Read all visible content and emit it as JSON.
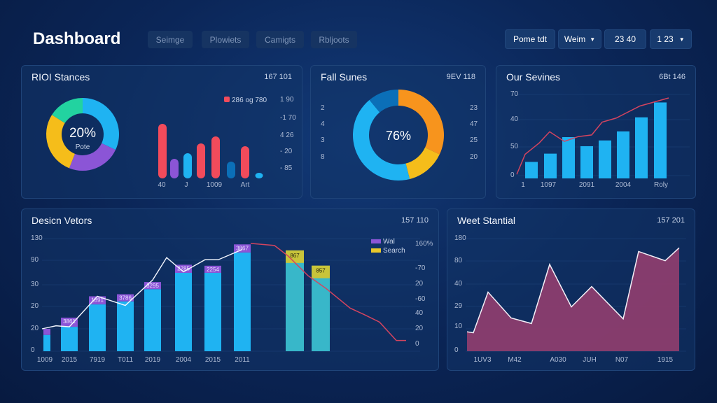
{
  "header": {
    "title": "Dashboard",
    "tabs": [
      "Seimge",
      "Plowiets",
      "Camigts",
      "Rbljoots"
    ],
    "controls": [
      "Pome tdt",
      "Weim",
      "23  40",
      "1 23"
    ]
  },
  "colors": {
    "cyan": "#1fb3f2",
    "purple": "#8b55d6",
    "yellow": "#f5bd1a",
    "green": "#22d3a0",
    "red": "#f24b5b",
    "orange": "#f7941d",
    "blue": "#0b6fb8",
    "magenta": "#8c3d6e",
    "line_red": "#d4445f"
  },
  "panels": {
    "p1": {
      "title": "RIOI Stances",
      "num": "167 101",
      "center_value": "20%",
      "center_label": "Pote",
      "legend": "286 og 780",
      "right_labels": [
        "1 90",
        "-1 70",
        "4 26",
        "- 20",
        "- 85"
      ],
      "x_labels": [
        "40",
        "J",
        "1009",
        "Art"
      ]
    },
    "p2": {
      "title": "Fall Sunes",
      "num": "9EV 118",
      "center_value": "76%",
      "left_labels": [
        "2",
        "4",
        "3",
        "8"
      ],
      "right_labels": [
        "23",
        "47",
        "25",
        "20"
      ]
    },
    "p3": {
      "title": "Our Sevines",
      "num": "6Bt 146",
      "y_labels": [
        "70",
        "40",
        "50",
        "0"
      ],
      "x_labels": [
        "1",
        "1097",
        "2091",
        "2004",
        "Roly"
      ]
    },
    "p4": {
      "title": "Desicn Vetors",
      "num": "157 110",
      "y_labels": [
        "130",
        "90",
        "30",
        "20",
        "20",
        "0"
      ],
      "right_labels": [
        "160%",
        "-70",
        "20",
        "-60",
        "40",
        "20",
        "0"
      ],
      "x_labels": [
        "1009",
        "2015",
        "7919",
        "T011",
        "2019",
        "2004",
        "2015",
        "2011"
      ],
      "legend": [
        "Wal",
        "Search"
      ],
      "bar_labels": [
        "",
        "3861",
        "1891",
        "3786",
        "3295",
        "2285",
        "2254",
        "3867",
        "867",
        "857"
      ]
    },
    "p5": {
      "title": "Weet Stantial",
      "num": "157 201",
      "y_labels": [
        "180",
        "80",
        "40",
        "29",
        "10",
        "0"
      ],
      "x_labels": [
        "1UV3",
        "M42",
        "A030",
        "JUH",
        "N07",
        "1915"
      ]
    }
  },
  "chart_data": [
    {
      "type": "pie",
      "panel": "p1",
      "slices": [
        {
          "color": "#1fb3f2",
          "value": 32
        },
        {
          "color": "#8b55d6",
          "value": 24
        },
        {
          "color": "#f5bd1a",
          "value": 28
        },
        {
          "color": "#22d3a0",
          "value": 16
        }
      ]
    },
    {
      "type": "bar",
      "panel": "p1",
      "values": [
        78,
        28,
        36,
        50,
        60,
        24,
        46,
        8
      ],
      "colors": [
        "#f24b5b",
        "#8b55d6",
        "#1fb3f2",
        "#f24b5b",
        "#f24b5b",
        "#0b6fb8",
        "#f24b5b",
        "#1fb3f2"
      ],
      "ylim": [
        0,
        100
      ]
    },
    {
      "type": "pie",
      "panel": "p2",
      "slices": [
        {
          "color": "#f7941d",
          "value": 32
        },
        {
          "color": "#f5bd1a",
          "value": 14
        },
        {
          "color": "#1fb3f2",
          "value": 43
        },
        {
          "color": "#0b6fb8",
          "value": 11
        }
      ]
    },
    {
      "type": "bar+line",
      "panel": "p3",
      "values": [
        20,
        30,
        50,
        39,
        46,
        57,
        74,
        92
      ],
      "line": [
        5,
        30,
        44,
        58,
        46,
        52,
        54,
        70,
        75,
        90,
        100
      ],
      "ylim": [
        0,
        100
      ]
    },
    {
      "type": "stacked-bar+line",
      "panel": "p4",
      "base": [
        16,
        24,
        46,
        49,
        61,
        77,
        77,
        97,
        95,
        80
      ],
      "top": [
        6,
        9,
        8,
        7,
        7,
        8,
        7,
        8,
        0,
        0
      ],
      "white_line": [
        22,
        25,
        24,
        54,
        45,
        70,
        92,
        78,
        90,
        90,
        100
      ],
      "red_line": [
        100,
        98,
        88,
        70,
        58,
        40,
        34,
        27,
        10,
        10
      ],
      "ylim": [
        0,
        110
      ]
    },
    {
      "type": "area",
      "panel": "p5",
      "values": [
        21,
        20,
        64,
        36,
        30,
        94,
        48,
        70,
        35,
        108,
        98,
        112
      ],
      "ylim": [
        0,
        125
      ]
    }
  ]
}
